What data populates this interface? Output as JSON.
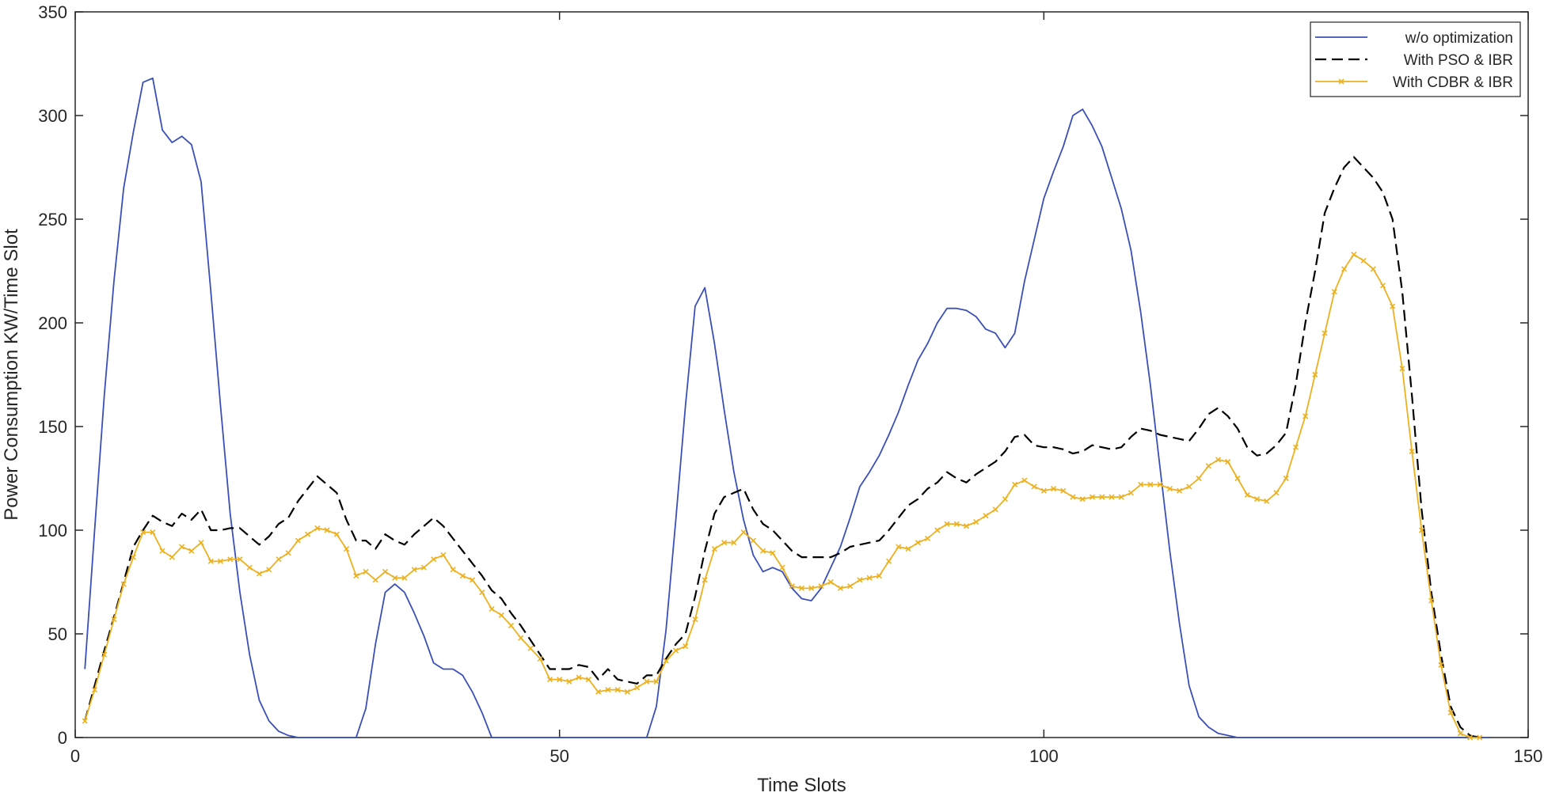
{
  "chart_data": {
    "type": "line",
    "title": "",
    "xlabel": "Time Slots",
    "ylabel": "Power Consumption KW/Time Slot",
    "xlim": [
      0,
      150
    ],
    "ylim": [
      0,
      350
    ],
    "xticks": [
      0,
      50,
      100,
      150
    ],
    "yticks": [
      0,
      50,
      100,
      150,
      200,
      250,
      300,
      350
    ],
    "grid": false,
    "legend": "top-right",
    "series": [
      {
        "name": "w/o optimization",
        "color": "#3a4fb8",
        "style": "solid",
        "marker": "none",
        "x": [
          1,
          2,
          3,
          4,
          5,
          6,
          7,
          8,
          9,
          10,
          11,
          12,
          13,
          14,
          15,
          16,
          17,
          18,
          19,
          20,
          21,
          22,
          23,
          29,
          30,
          31,
          32,
          33,
          34,
          35,
          36,
          37,
          38,
          39,
          40,
          41,
          42,
          43,
          44,
          45,
          59,
          60,
          61,
          62,
          63,
          64,
          65,
          66,
          67,
          68,
          69,
          70,
          71,
          72,
          73,
          74,
          75,
          76,
          77,
          78,
          79,
          80,
          81,
          82,
          83,
          84,
          85,
          86,
          87,
          88,
          89,
          90,
          91,
          92,
          93,
          94,
          95,
          96,
          97,
          98,
          99,
          100,
          101,
          102,
          103,
          104,
          105,
          106,
          107,
          108,
          109,
          110,
          111,
          112,
          113,
          114,
          115,
          116,
          117,
          118,
          119,
          120,
          121,
          146
        ],
        "values": [
          33,
          100,
          165,
          220,
          265,
          292,
          316,
          318,
          293,
          287,
          290,
          286,
          268,
          215,
          160,
          108,
          70,
          40,
          18,
          8,
          3,
          1,
          0,
          0,
          14,
          45,
          70,
          74,
          70,
          60,
          49,
          36,
          33,
          33,
          30,
          22,
          12,
          0,
          0,
          0,
          0,
          15,
          52,
          105,
          160,
          208,
          217,
          190,
          158,
          128,
          105,
          88,
          80,
          82,
          80,
          72,
          67,
          66,
          72,
          82,
          92,
          106,
          121,
          128,
          136,
          146,
          157,
          170,
          182,
          190,
          200,
          207,
          207,
          206,
          203,
          197,
          195,
          188,
          195,
          220,
          240,
          260,
          273,
          285,
          300,
          303,
          295,
          285,
          270,
          255,
          235,
          205,
          170,
          130,
          90,
          55,
          25,
          10,
          5,
          2,
          1,
          0,
          0,
          0
        ]
      },
      {
        "name": "With PSO & IBR",
        "color": "#000000",
        "style": "dashed",
        "marker": "none",
        "x": [
          1,
          2,
          3,
          4,
          5,
          6,
          7,
          8,
          9,
          10,
          11,
          12,
          13,
          14,
          15,
          16,
          17,
          18,
          19,
          20,
          21,
          22,
          23,
          24,
          25,
          26,
          27,
          28,
          29,
          30,
          31,
          32,
          33,
          34,
          35,
          36,
          37,
          38,
          39,
          40,
          41,
          42,
          43,
          44,
          45,
          46,
          47,
          48,
          49,
          50,
          51,
          52,
          53,
          54,
          55,
          56,
          57,
          58,
          59,
          60,
          61,
          62,
          63,
          64,
          65,
          66,
          67,
          68,
          69,
          70,
          71,
          72,
          73,
          74,
          75,
          76,
          77,
          78,
          79,
          80,
          81,
          82,
          83,
          84,
          85,
          86,
          87,
          88,
          89,
          90,
          91,
          92,
          93,
          94,
          95,
          96,
          97,
          98,
          99,
          100,
          101,
          102,
          103,
          104,
          105,
          106,
          107,
          108,
          109,
          110,
          111,
          112,
          113,
          114,
          115,
          116,
          117,
          118,
          119,
          120,
          121,
          122,
          123,
          124,
          125,
          126,
          127,
          128,
          129,
          130,
          131,
          132,
          133,
          134,
          135,
          136,
          137,
          138,
          139,
          140,
          141,
          142,
          143,
          144,
          145
        ],
        "values": [
          8,
          25,
          42,
          58,
          75,
          92,
          100,
          107,
          104,
          102,
          108,
          105,
          110,
          100,
          100,
          101,
          101,
          97,
          93,
          97,
          103,
          106,
          114,
          120,
          126,
          122,
          118,
          105,
          95,
          95,
          91,
          98,
          95,
          93,
          98,
          102,
          106,
          102,
          96,
          90,
          84,
          78,
          71,
          67,
          60,
          54,
          47,
          40,
          33,
          33,
          33,
          35,
          34,
          28,
          33,
          28,
          27,
          26,
          30,
          30,
          38,
          45,
          50,
          68,
          90,
          108,
          116,
          118,
          120,
          110,
          103,
          100,
          95,
          90,
          87,
          87,
          87,
          87,
          89,
          92,
          93,
          94,
          95,
          100,
          106,
          112,
          115,
          120,
          123,
          128,
          125,
          123,
          127,
          130,
          133,
          138,
          145,
          146,
          141,
          140,
          140,
          139,
          137,
          138,
          141,
          140,
          139,
          140,
          145,
          149,
          148,
          146,
          145,
          144,
          143,
          149,
          156,
          159,
          155,
          149,
          140,
          136,
          137,
          141,
          147,
          170,
          200,
          225,
          253,
          265,
          275,
          280,
          275,
          270,
          263,
          250,
          215,
          165,
          110,
          70,
          40,
          15,
          5,
          1,
          0
        ]
      },
      {
        "name": "With CDBR & IBR",
        "color": "#edb120",
        "style": "solid",
        "marker": "x",
        "x": [
          1,
          2,
          3,
          4,
          5,
          6,
          7,
          8,
          9,
          10,
          11,
          12,
          13,
          14,
          15,
          16,
          17,
          18,
          19,
          20,
          21,
          22,
          23,
          24,
          25,
          26,
          27,
          28,
          29,
          30,
          31,
          32,
          33,
          34,
          35,
          36,
          37,
          38,
          39,
          40,
          41,
          42,
          43,
          44,
          45,
          46,
          47,
          48,
          49,
          50,
          51,
          52,
          53,
          54,
          55,
          56,
          57,
          58,
          59,
          60,
          61,
          62,
          63,
          64,
          65,
          66,
          67,
          68,
          69,
          70,
          71,
          72,
          73,
          74,
          75,
          76,
          77,
          78,
          79,
          80,
          81,
          82,
          83,
          84,
          85,
          86,
          87,
          88,
          89,
          90,
          91,
          92,
          93,
          94,
          95,
          96,
          97,
          98,
          99,
          100,
          101,
          102,
          103,
          104,
          105,
          106,
          107,
          108,
          109,
          110,
          111,
          112,
          113,
          114,
          115,
          116,
          117,
          118,
          119,
          120,
          121,
          122,
          123,
          124,
          125,
          126,
          127,
          128,
          129,
          130,
          131,
          132,
          133,
          134,
          135,
          136,
          137,
          138,
          139,
          140,
          141,
          142,
          143,
          144,
          145
        ],
        "values": [
          8,
          23,
          40,
          57,
          74,
          87,
          99,
          99,
          90,
          87,
          92,
          90,
          94,
          85,
          85,
          86,
          86,
          82,
          79,
          81,
          86,
          89,
          95,
          98,
          101,
          100,
          98,
          91,
          78,
          80,
          76,
          80,
          77,
          77,
          81,
          82,
          86,
          88,
          81,
          78,
          76,
          70,
          62,
          59,
          54,
          48,
          43,
          38,
          28,
          28,
          27,
          29,
          28,
          22,
          23,
          23,
          22,
          24,
          27,
          27,
          37,
          42,
          44,
          57,
          76,
          91,
          94,
          94,
          99,
          95,
          90,
          89,
          82,
          73,
          72,
          72,
          73,
          75,
          72,
          73,
          76,
          77,
          78,
          85,
          92,
          91,
          94,
          96,
          100,
          103,
          103,
          102,
          104,
          107,
          110,
          115,
          122,
          124,
          121,
          119,
          120,
          119,
          116,
          115,
          116,
          116,
          116,
          116,
          118,
          122,
          122,
          122,
          120,
          119,
          121,
          125,
          131,
          134,
          133,
          125,
          117,
          115,
          114,
          118,
          125,
          140,
          155,
          175,
          195,
          215,
          226,
          233,
          230,
          226,
          218,
          208,
          178,
          138,
          100,
          66,
          35,
          12,
          2,
          0,
          0
        ]
      }
    ]
  }
}
